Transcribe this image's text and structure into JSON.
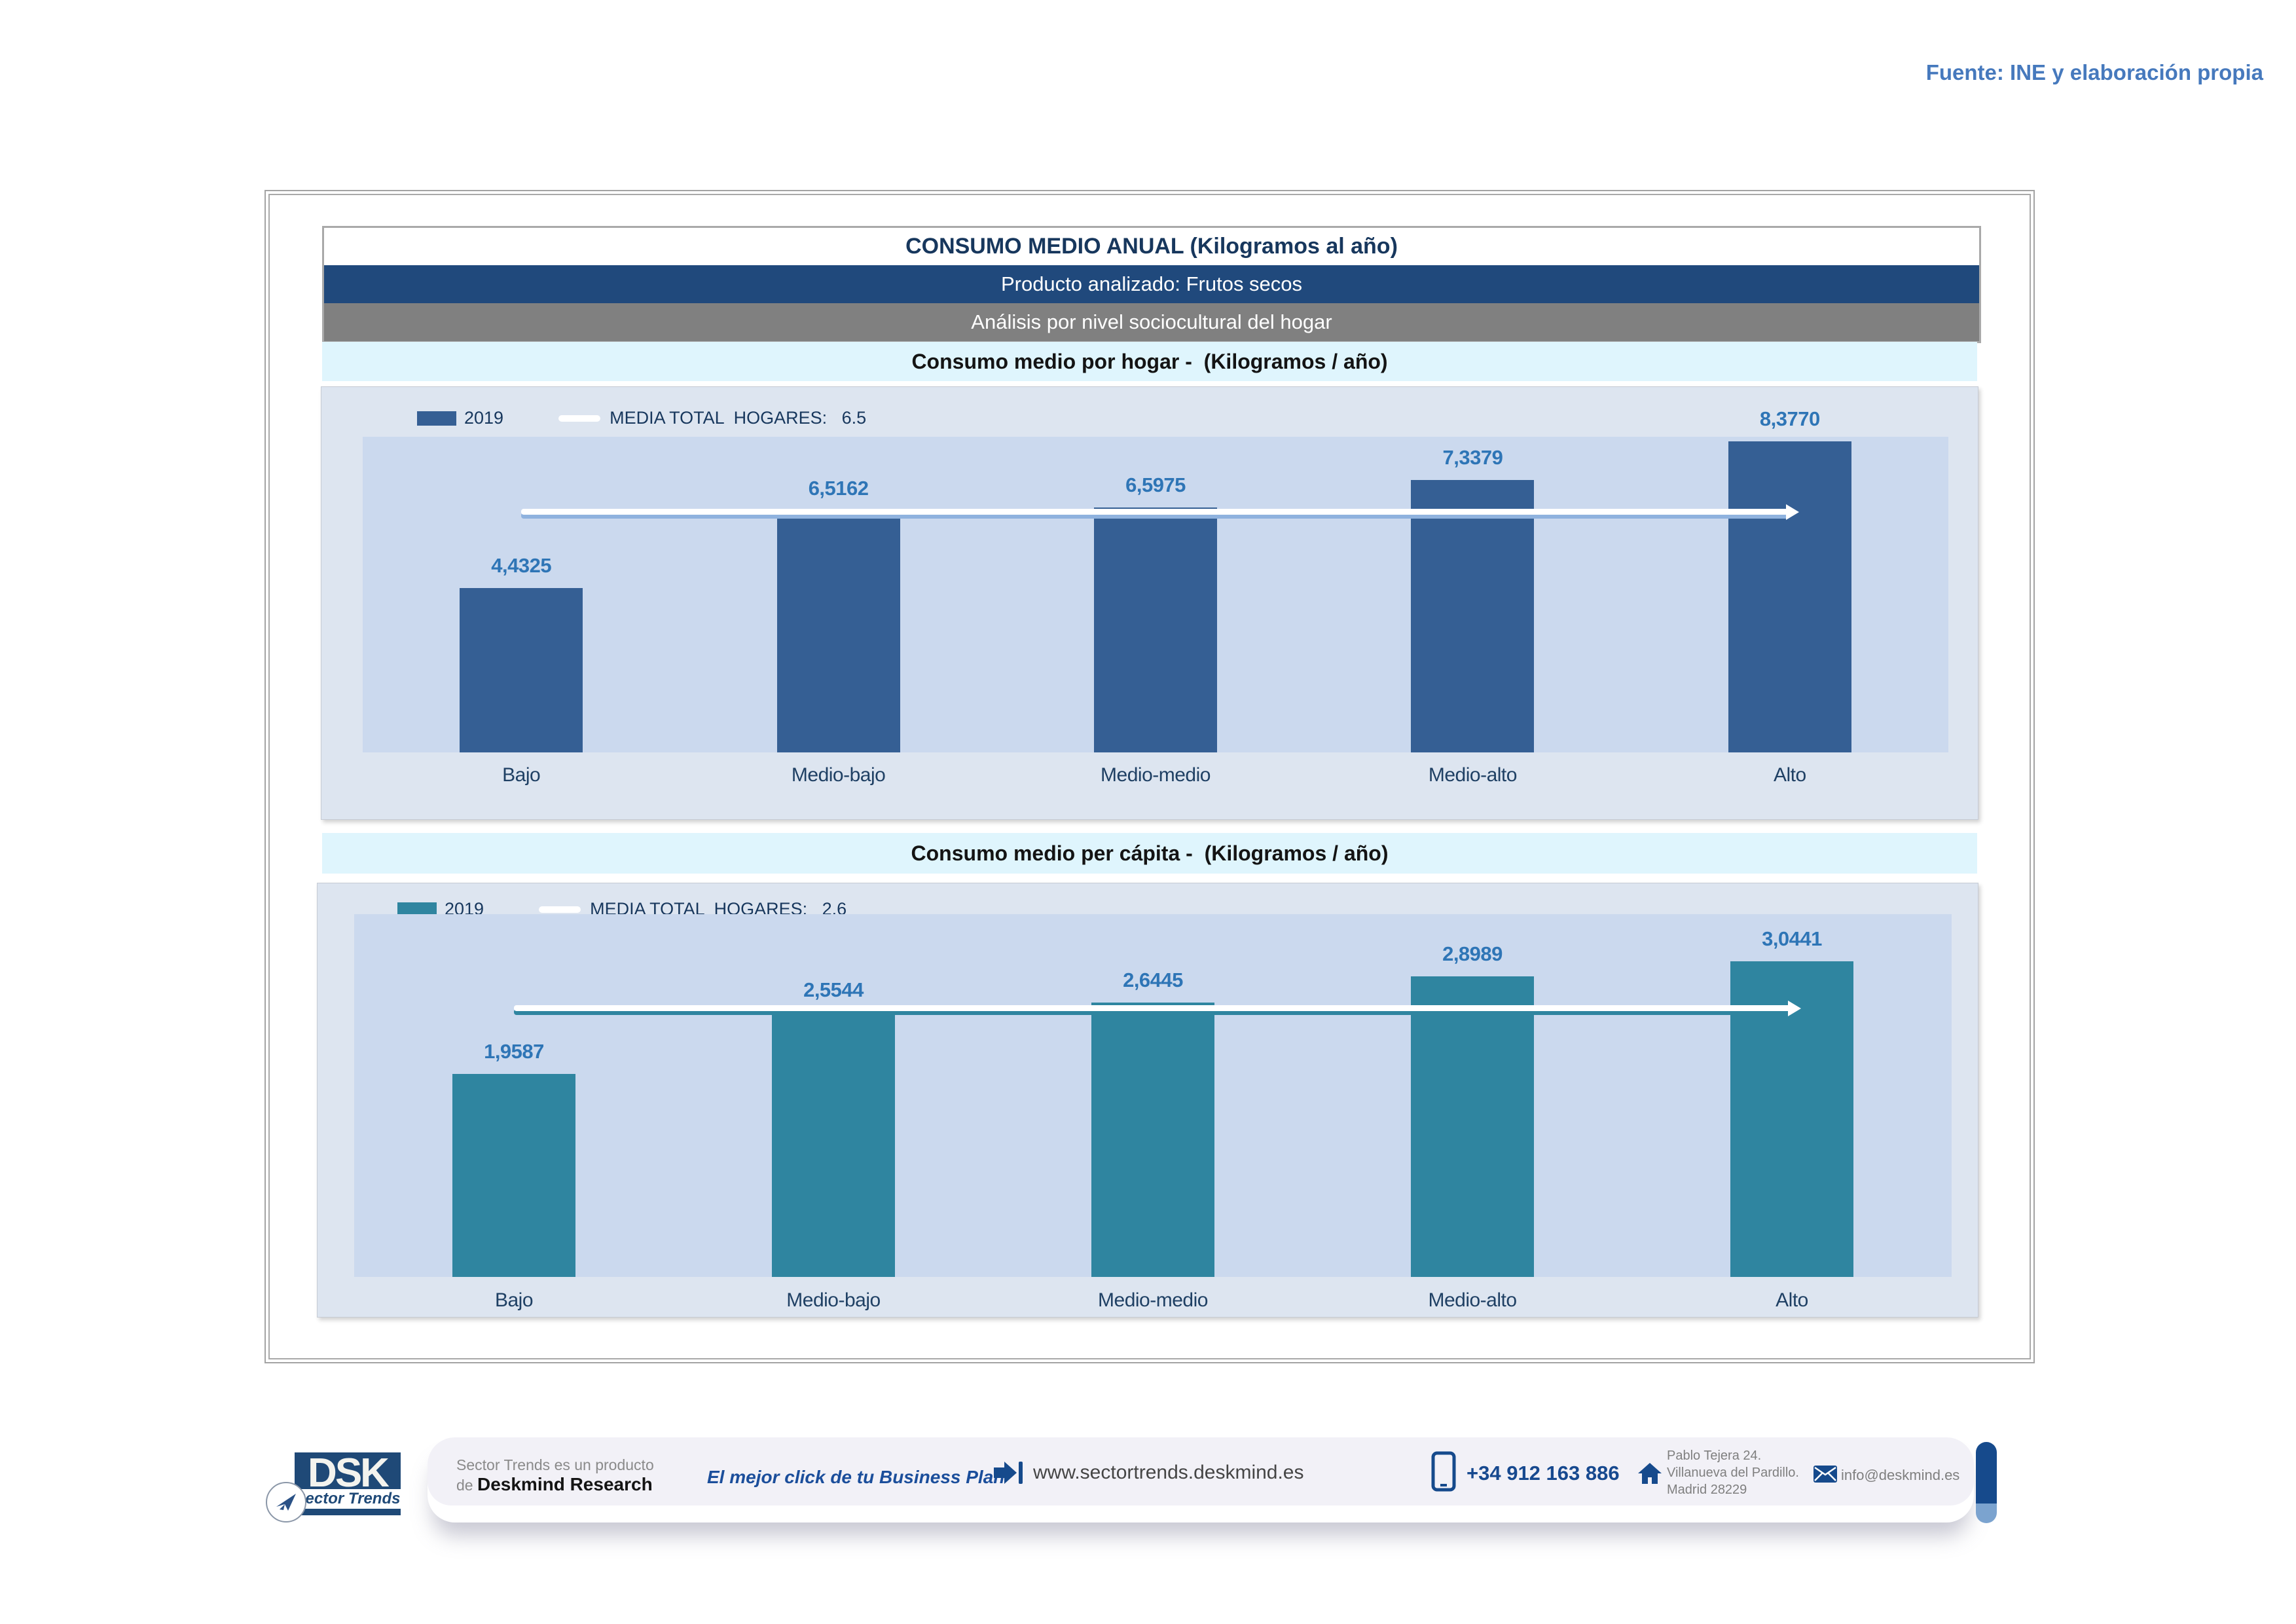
{
  "source_note": "Fuente: INE y elaboración propia",
  "header": {
    "title": "CONSUMO MEDIO ANUAL (Kilogramos al año)",
    "product_band": "Producto analizado: Frutos secos",
    "analysis_band": "Análisis por nivel sociocultural del hogar"
  },
  "palette": {
    "source_note_color": "#4679BD",
    "band_blue": "#20497C",
    "band_gray": "#808080",
    "band_cyan": "#DFF5FD",
    "title_text": "#17375D",
    "footer_blue": "#164A8C"
  },
  "chart_data": [
    {
      "type": "bar",
      "title": "Consumo medio por hogar -  (Kilogramos / año)",
      "legend_year": "2019",
      "categories": [
        "Bajo",
        "Medio-bajo",
        "Medio-medio",
        "Medio-alto",
        "Alto"
      ],
      "values": [
        4.4325,
        6.5162,
        6.5975,
        7.3379,
        8.377
      ],
      "values_display": [
        "4,4325",
        "6,5162",
        "6,5975",
        "7,3379",
        "8,3770"
      ],
      "media": {
        "label": "MEDIA TOTAL  HOGARES:   6.5",
        "value": 6.5
      },
      "ylim": [
        0,
        8.5
      ],
      "grid": false,
      "legend_position": "top-left",
      "bar_color": "#355F94",
      "media_line_color": "#FFFFFF",
      "media_shadow_color": "#8FB2DE",
      "plot_bg": "#CBD9EE",
      "panel_bg": "#DDE5F0",
      "value_label_color": "#2E75B6"
    },
    {
      "type": "bar",
      "title": "Consumo medio per cápita -  (Kilogramos / año)",
      "legend_year": "2019",
      "categories": [
        "Bajo",
        "Medio-bajo",
        "Medio-medio",
        "Medio-alto",
        "Alto"
      ],
      "values": [
        1.9587,
        2.5544,
        2.6445,
        2.8989,
        3.0441
      ],
      "values_display": [
        "1,9587",
        "2,5544",
        "2,6445",
        "2,8989",
        "3,0441"
      ],
      "media": {
        "label": "MEDIA TOTAL  HOGARES:   2.6",
        "value": 2.6
      },
      "ylim": [
        0,
        3.5
      ],
      "grid": false,
      "legend_position": "top-left",
      "bar_color": "#2F85A0",
      "media_line_color": "#FFFFFF",
      "media_shadow_color": "#2F85A0",
      "plot_bg": "#CBD9EE",
      "panel_bg": "#DDE5F0",
      "value_label_color": "#2E75B6"
    }
  ],
  "footer": {
    "logo": {
      "text": "DSK",
      "subtext": "Sector Trends"
    },
    "product_line1": "Sector Trends es un producto",
    "product_line2_prefix": "de ",
    "product_line2_bold": "Deskmind Research",
    "slogan": "El mejor click de tu Business Plan",
    "website": "www.sectortrends.deskmind.es",
    "phone": "+34 912 163 886",
    "address_line1": "Pablo Tejera 24.",
    "address_line2": "Villanueva del Pardillo.",
    "address_line3": "Madrid 28229",
    "email": "info@deskmind.es"
  }
}
